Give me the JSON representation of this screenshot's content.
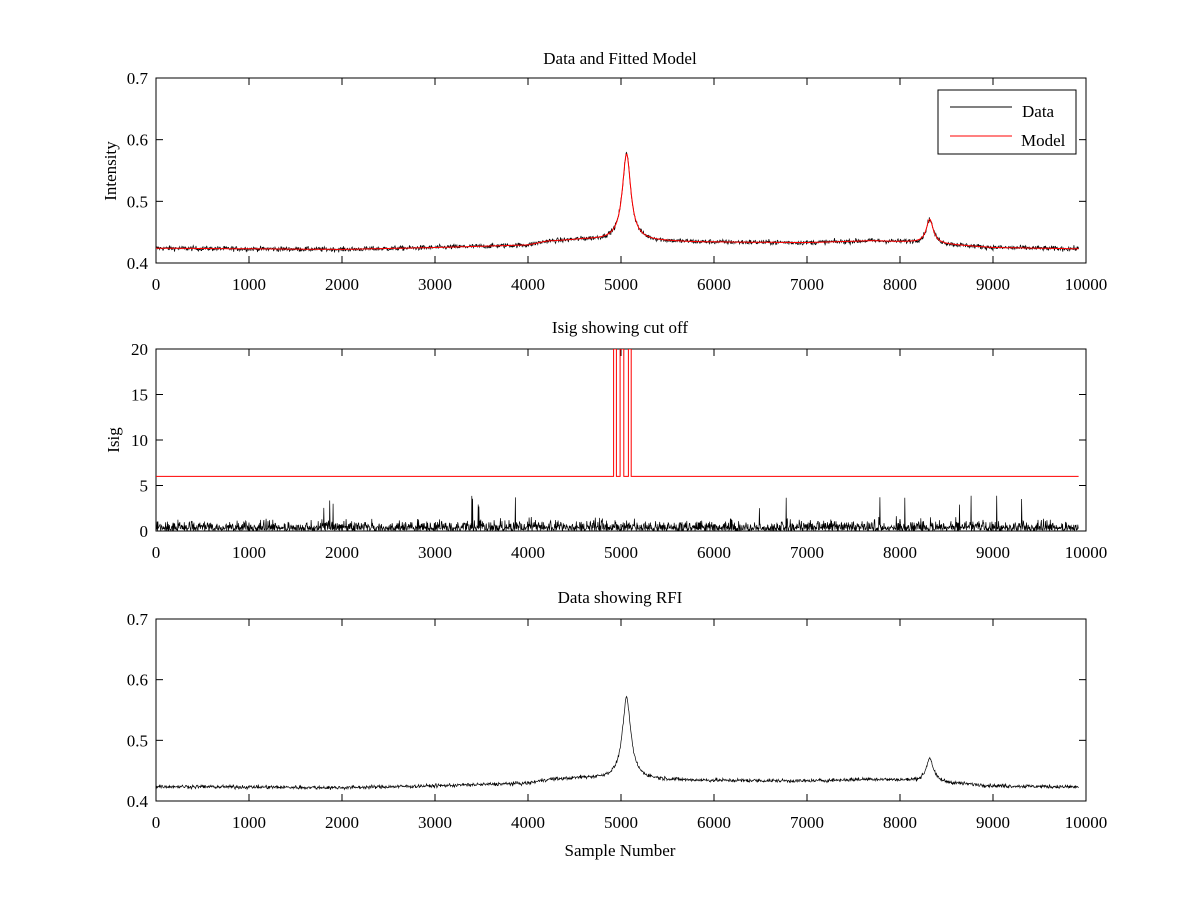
{
  "chart_data": [
    {
      "type": "line",
      "title": "Data and Fitted Model",
      "xlabel": "",
      "ylabel": "Intensity",
      "xlim": [
        0,
        10000
      ],
      "ylim": [
        0.4,
        0.7
      ],
      "xticks": [
        0,
        1000,
        2000,
        3000,
        4000,
        5000,
        6000,
        7000,
        8000,
        9000,
        10000
      ],
      "yticks": [
        0.4,
        0.5,
        0.6,
        0.7
      ],
      "xtick_labels": [
        "0",
        "1000",
        "2000",
        "3000",
        "4000",
        "5000",
        "6000",
        "7000",
        "8000",
        "9000",
        "10000"
      ],
      "ytick_labels": [
        "0.4",
        "0.5",
        "0.6",
        "0.7"
      ],
      "legend": {
        "position": "top-right",
        "entries": [
          "Data",
          "Model"
        ]
      },
      "series": [
        {
          "name": "Data",
          "color": "#000000",
          "kind": "noisy-spectrum",
          "x_range": [
            0,
            9920
          ],
          "noise_amplitude": 0.004
        },
        {
          "name": "Model",
          "color": "#ff0000",
          "kind": "fitted-spectrum",
          "x_range": [
            0,
            9920
          ],
          "peaks": [
            {
              "x": 5060,
              "y": 0.577
            },
            {
              "x": 8320,
              "y": 0.471
            }
          ]
        }
      ],
      "baseline_points": [
        [
          0,
          0.424
        ],
        [
          1000,
          0.423
        ],
        [
          2000,
          0.422
        ],
        [
          3000,
          0.425
        ],
        [
          4000,
          0.429
        ],
        [
          4200,
          0.435
        ],
        [
          4600,
          0.438
        ],
        [
          5800,
          0.434
        ],
        [
          7000,
          0.433
        ],
        [
          7700,
          0.436
        ],
        [
          8100,
          0.434
        ],
        [
          9000,
          0.425
        ],
        [
          9920,
          0.423
        ]
      ]
    },
    {
      "type": "line",
      "title": "Isig showing cut off",
      "xlabel": "",
      "ylabel": "Isig",
      "xlim": [
        0,
        10000
      ],
      "ylim": [
        0,
        20
      ],
      "xticks": [
        0,
        1000,
        2000,
        3000,
        4000,
        5000,
        6000,
        7000,
        8000,
        9000,
        10000
      ],
      "yticks": [
        0,
        5,
        10,
        15,
        20
      ],
      "xtick_labels": [
        "0",
        "1000",
        "2000",
        "3000",
        "4000",
        "5000",
        "6000",
        "7000",
        "8000",
        "9000",
        "10000"
      ],
      "ytick_labels": [
        "0",
        "5",
        "10",
        "15",
        "20"
      ],
      "series": [
        {
          "name": "Isig",
          "color": "#000000",
          "kind": "noise",
          "x_range": [
            0,
            9920
          ],
          "typical_max": 2.5,
          "peak_max": 3.9
        },
        {
          "name": "Cut off",
          "color": "#ff0000",
          "kind": "step",
          "points": [
            [
              0,
              6
            ],
            [
              4920,
              6
            ],
            [
              4920,
              20
            ],
            [
              4950,
              20
            ],
            [
              4950,
              6
            ],
            [
              4990,
              6
            ],
            [
              4990,
              20
            ],
            [
              5030,
              20
            ],
            [
              5030,
              6
            ],
            [
              5080,
              6
            ],
            [
              5080,
              20
            ],
            [
              5110,
              20
            ],
            [
              5110,
              6
            ],
            [
              9920,
              6
            ]
          ]
        }
      ]
    },
    {
      "type": "line",
      "title": "Data showing RFI",
      "xlabel": "Sample Number",
      "ylabel": "",
      "xlim": [
        0,
        10000
      ],
      "ylim": [
        0.4,
        0.7
      ],
      "xticks": [
        0,
        1000,
        2000,
        3000,
        4000,
        5000,
        6000,
        7000,
        8000,
        9000,
        10000
      ],
      "yticks": [
        0.4,
        0.5,
        0.6,
        0.7
      ],
      "xtick_labels": [
        "0",
        "1000",
        "2000",
        "3000",
        "4000",
        "5000",
        "6000",
        "7000",
        "8000",
        "9000",
        "10000"
      ],
      "ytick_labels": [
        "0.4",
        "0.5",
        "0.6",
        "0.7"
      ],
      "series": [
        {
          "name": "Data",
          "color": "#000000",
          "kind": "noisy-spectrum",
          "x_range": [
            0,
            9920
          ],
          "noise_amplitude": 0.003,
          "peaks": [
            {
              "x": 5060,
              "y": 0.569
            },
            {
              "x": 8320,
              "y": 0.471
            }
          ]
        }
      ],
      "baseline_points": [
        [
          0,
          0.424
        ],
        [
          1000,
          0.423
        ],
        [
          2000,
          0.422
        ],
        [
          3000,
          0.425
        ],
        [
          4000,
          0.429
        ],
        [
          4200,
          0.435
        ],
        [
          4600,
          0.438
        ],
        [
          5800,
          0.434
        ],
        [
          7000,
          0.433
        ],
        [
          7700,
          0.436
        ],
        [
          8100,
          0.434
        ],
        [
          9000,
          0.425
        ],
        [
          9920,
          0.423
        ]
      ]
    }
  ]
}
